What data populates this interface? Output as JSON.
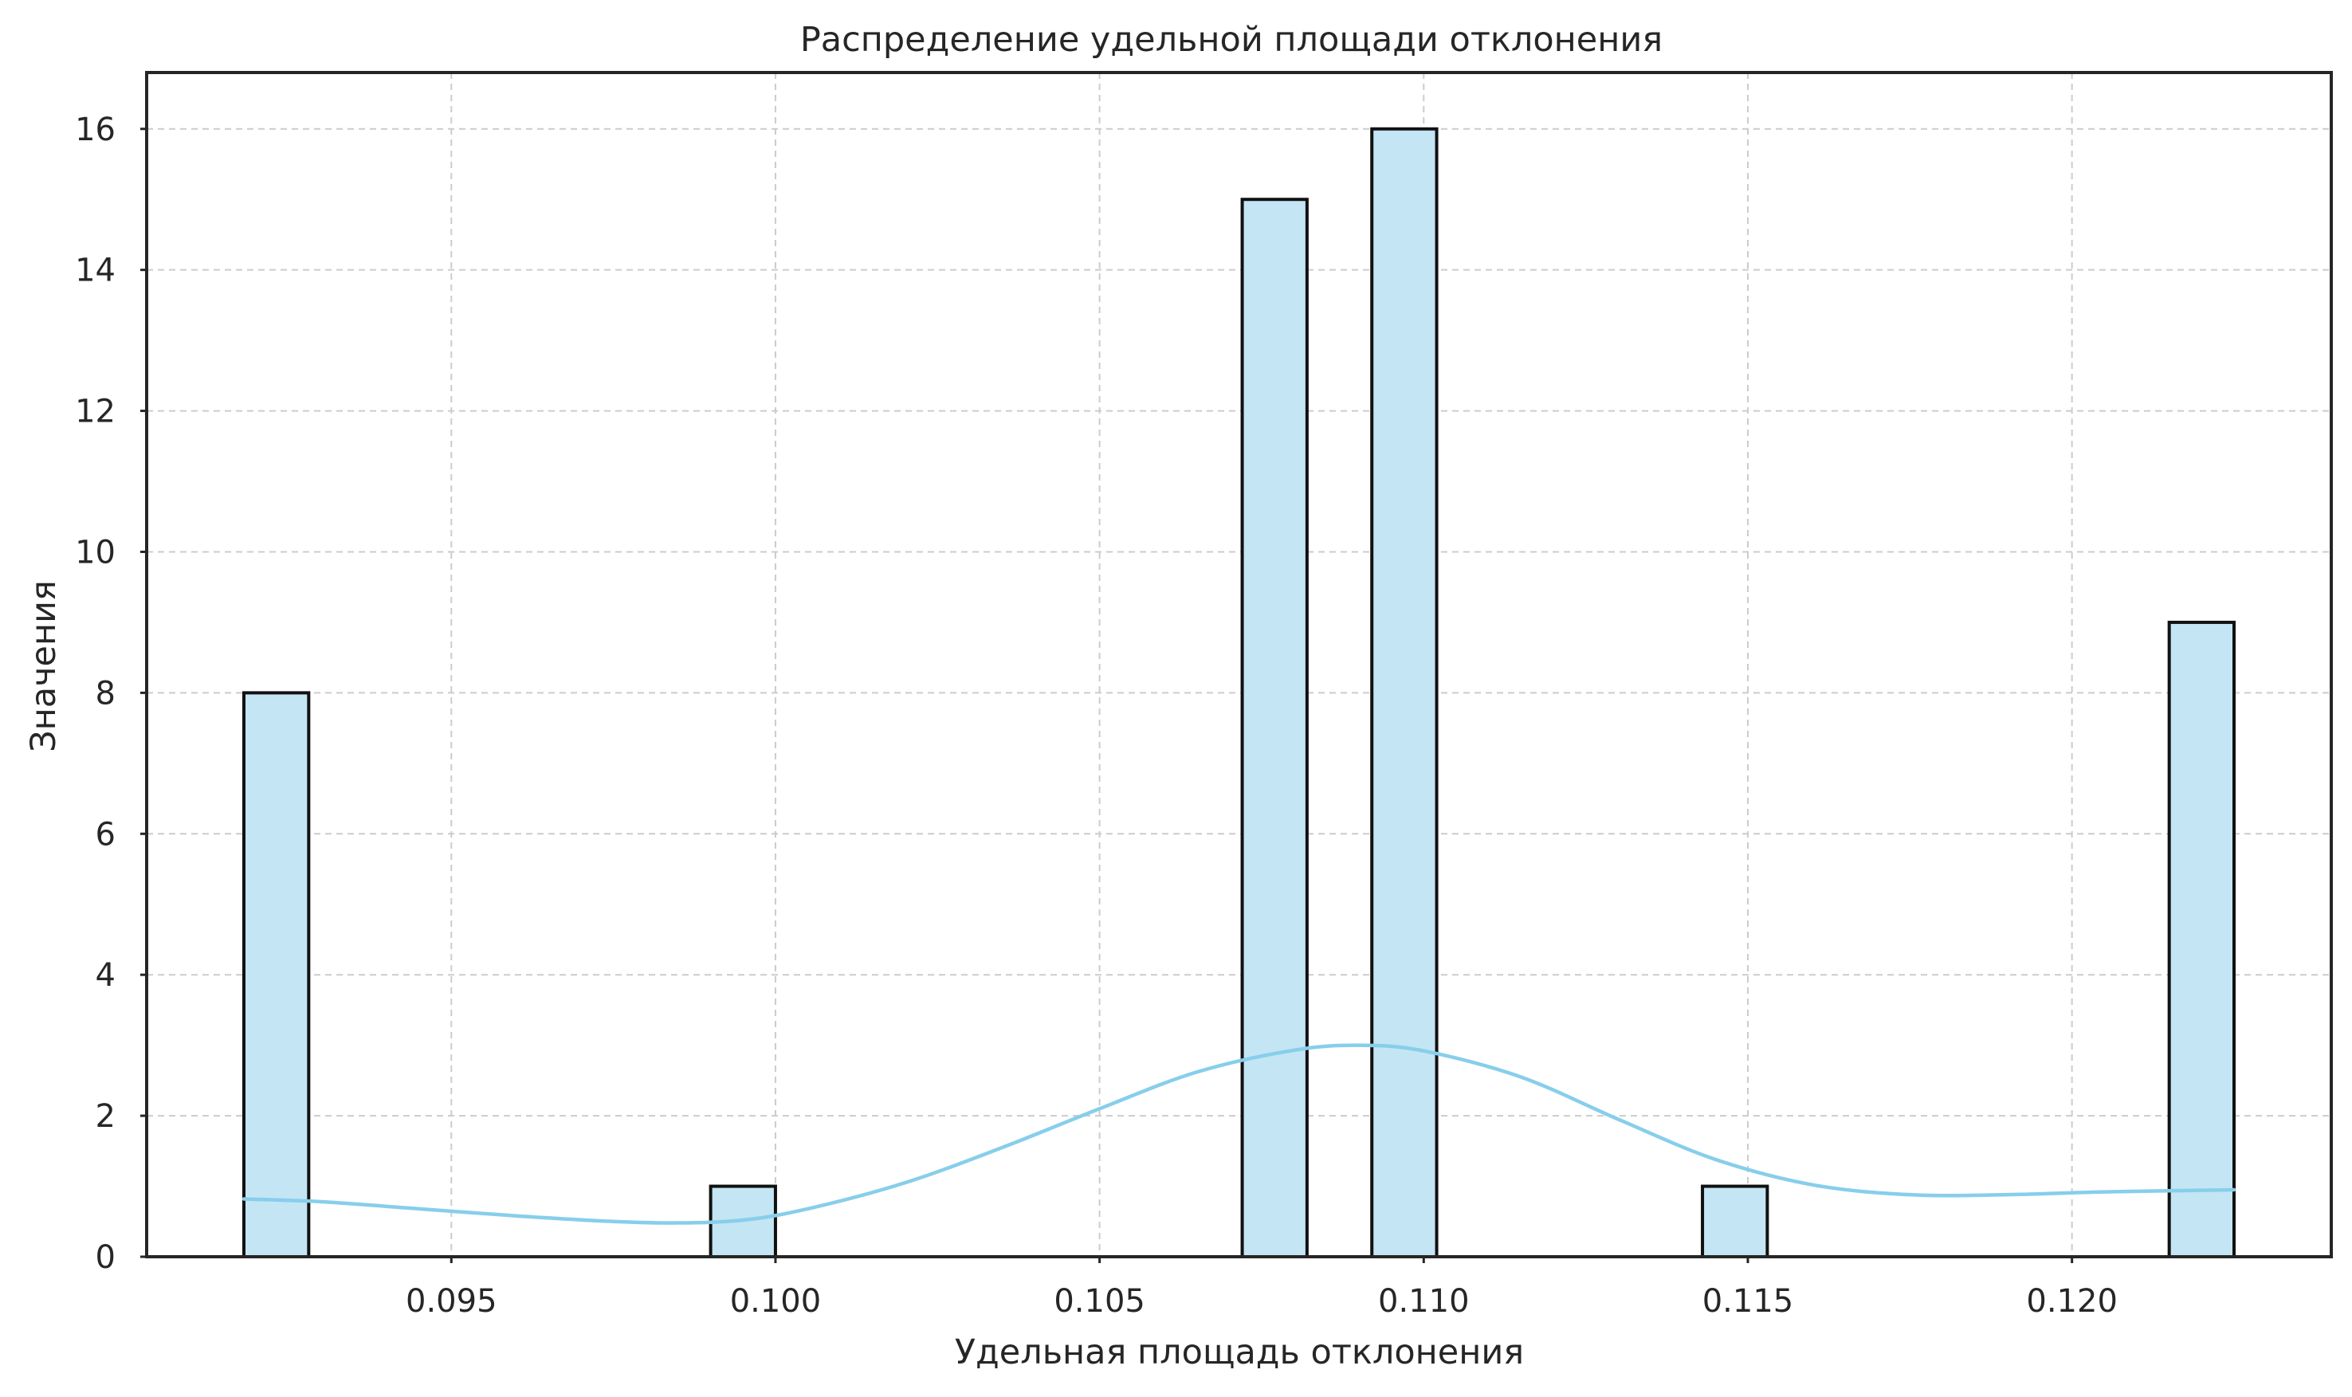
{
  "chart_data": {
    "type": "bar",
    "title": "Распределение удельной площади отклонения",
    "xlabel": "Удельная площадь отклонения",
    "ylabel": "Значения",
    "xlim": [
      0.0903,
      0.124
    ],
    "ylim": [
      0,
      16.8
    ],
    "xticks": [
      {
        "value": 0.095,
        "label": "0.095"
      },
      {
        "value": 0.1,
        "label": "0.100"
      },
      {
        "value": 0.105,
        "label": "0.105"
      },
      {
        "value": 0.11,
        "label": "0.110"
      },
      {
        "value": 0.115,
        "label": "0.115"
      },
      {
        "value": 0.12,
        "label": "0.120"
      }
    ],
    "yticks": [
      {
        "value": 0,
        "label": "0"
      },
      {
        "value": 2,
        "label": "2"
      },
      {
        "value": 4,
        "label": "4"
      },
      {
        "value": 6,
        "label": "6"
      },
      {
        "value": 8,
        "label": "8"
      },
      {
        "value": 10,
        "label": "10"
      },
      {
        "value": 12,
        "label": "12"
      },
      {
        "value": 14,
        "label": "14"
      },
      {
        "value": 16,
        "label": "16"
      }
    ],
    "grid": true,
    "bars": [
      {
        "x0": 0.0918,
        "x1": 0.0928,
        "value": 8
      },
      {
        "x0": 0.099,
        "x1": 0.1,
        "value": 1
      },
      {
        "x0": 0.1072,
        "x1": 0.1082,
        "value": 15
      },
      {
        "x0": 0.1092,
        "x1": 0.1102,
        "value": 16
      },
      {
        "x0": 0.1143,
        "x1": 0.1153,
        "value": 1
      },
      {
        "x0": 0.1215,
        "x1": 0.1225,
        "value": 9
      }
    ],
    "kde": {
      "x": [
        0.0918,
        0.093,
        0.0945,
        0.096,
        0.0975,
        0.0985,
        0.0995,
        0.1005,
        0.102,
        0.1035,
        0.105,
        0.1065,
        0.108,
        0.109,
        0.11,
        0.1115,
        0.113,
        0.1145,
        0.116,
        0.1175,
        0.119,
        0.1205,
        0.1225
      ],
      "y": [
        0.82,
        0.78,
        0.68,
        0.58,
        0.5,
        0.48,
        0.52,
        0.68,
        1.05,
        1.55,
        2.1,
        2.62,
        2.93,
        3.0,
        2.92,
        2.55,
        1.95,
        1.38,
        1.02,
        0.88,
        0.88,
        0.92,
        0.95
      ]
    },
    "colors": {
      "bar_fill": "#c3e5f4",
      "bar_edge": "#111111",
      "kde_line": "#87ceeb",
      "grid": "#cccccc",
      "frame": "#262626",
      "text": "#262626"
    }
  }
}
